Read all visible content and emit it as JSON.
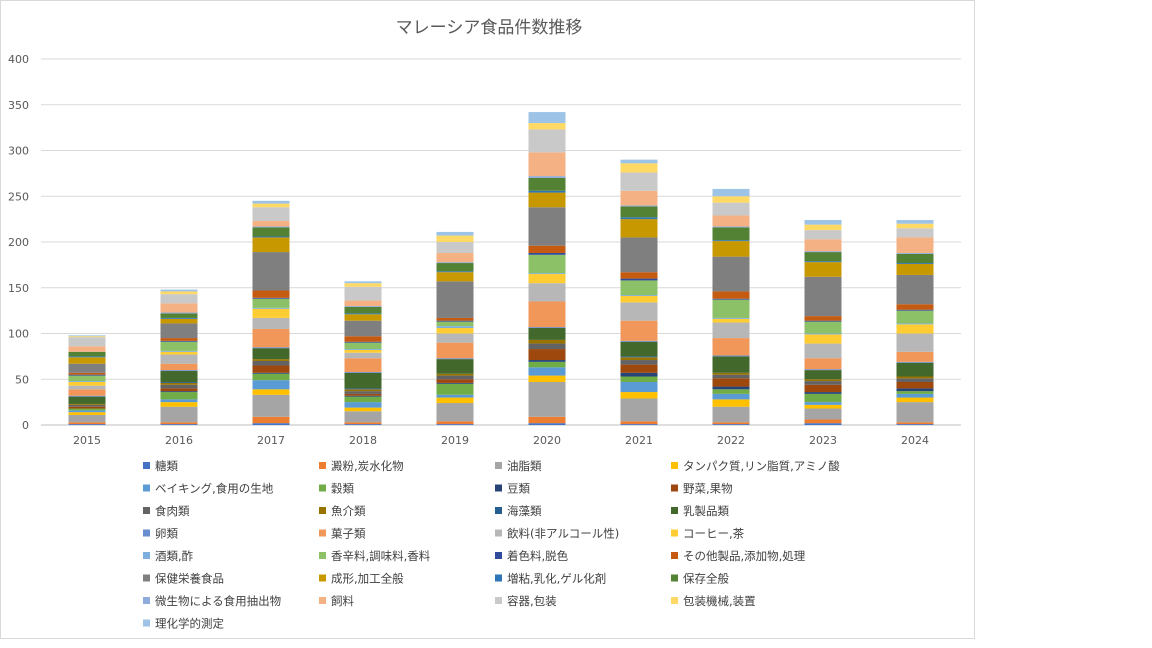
{
  "chart_data": {
    "type": "bar",
    "stacked": true,
    "title": "マレーシア食品件数推移",
    "xlabel": "",
    "ylabel": "",
    "ylim": [
      0,
      400
    ],
    "yticks": [
      0,
      50,
      100,
      150,
      200,
      250,
      300,
      350,
      400
    ],
    "grid": true,
    "legend_position": "bottom",
    "categories": [
      "2015",
      "2016",
      "2017",
      "2018",
      "2019",
      "2020",
      "2021",
      "2022",
      "2023",
      "2024"
    ],
    "series": [
      {
        "name": "糖類",
        "color": "#4472C4",
        "values": [
          1,
          1,
          2,
          1,
          1,
          2,
          1,
          1,
          2,
          1
        ]
      },
      {
        "name": "澱粉,炭水化物",
        "color": "#ED7D31",
        "values": [
          2,
          2,
          7,
          2,
          3,
          7,
          3,
          2,
          4,
          2
        ]
      },
      {
        "name": "油脂類",
        "color": "#A5A5A5",
        "values": [
          8,
          17,
          24,
          12,
          20,
          38,
          25,
          17,
          12,
          22
        ]
      },
      {
        "name": "タンパク質,リン脂質,アミノ酸",
        "color": "#FFC000",
        "values": [
          3,
          5,
          6,
          4,
          6,
          7,
          7,
          8,
          4,
          5
        ]
      },
      {
        "name": "ベイキング,食用の生地",
        "color": "#5B9BD5",
        "values": [
          2,
          3,
          10,
          6,
          3,
          9,
          11,
          6,
          3,
          4
        ]
      },
      {
        "name": "穀類",
        "color": "#70AD47",
        "values": [
          2,
          8,
          7,
          6,
          12,
          6,
          6,
          5,
          9,
          3
        ]
      },
      {
        "name": "豆類",
        "color": "#264478",
        "values": [
          0,
          1,
          1,
          1,
          1,
          2,
          4,
          3,
          2,
          3
        ]
      },
      {
        "name": "野菜,果物",
        "color": "#9E480E",
        "values": [
          2,
          3,
          8,
          2,
          4,
          12,
          9,
          9,
          8,
          7
        ]
      },
      {
        "name": "食肉類",
        "color": "#636363",
        "values": [
          2,
          4,
          5,
          3,
          4,
          6,
          5,
          4,
          4,
          4
        ]
      },
      {
        "name": "魚介類",
        "color": "#997300",
        "values": [
          1,
          2,
          2,
          2,
          2,
          4,
          3,
          2,
          2,
          2
        ]
      },
      {
        "name": "海藻類",
        "color": "#255E91",
        "values": [
          0,
          1,
          0,
          1,
          0,
          0,
          1,
          0,
          0,
          0
        ]
      },
      {
        "name": "乳製品類",
        "color": "#43682B",
        "values": [
          8,
          12,
          12,
          17,
          16,
          13,
          16,
          18,
          10,
          15
        ]
      },
      {
        "name": "卵類",
        "color": "#698ED0",
        "values": [
          1,
          1,
          1,
          1,
          1,
          1,
          1,
          1,
          1,
          1
        ]
      },
      {
        "name": "菓子類",
        "color": "#F1975A",
        "values": [
          7,
          7,
          20,
          15,
          17,
          28,
          22,
          19,
          12,
          11
        ]
      },
      {
        "name": "飲料(非アルコール性)",
        "color": "#B7B7B7",
        "values": [
          4,
          10,
          12,
          6,
          10,
          20,
          20,
          17,
          16,
          20
        ]
      },
      {
        "name": "コーヒー,茶",
        "color": "#FFCD33",
        "values": [
          4,
          3,
          10,
          3,
          6,
          10,
          7,
          4,
          10,
          10
        ]
      },
      {
        "name": "酒類,酢",
        "color": "#7CAFDD",
        "values": [
          1,
          1,
          1,
          1,
          2,
          1,
          1,
          1,
          1,
          1
        ]
      },
      {
        "name": "香辛料,調味料,香料",
        "color": "#8CC168",
        "values": [
          6,
          10,
          10,
          7,
          5,
          20,
          16,
          20,
          13,
          14
        ]
      },
      {
        "name": "着色料,脱色",
        "color": "#2F4B9A",
        "values": [
          1,
          1,
          1,
          1,
          1,
          2,
          2,
          1,
          1,
          1
        ]
      },
      {
        "name": "その他製品,添加物,処理",
        "color": "#C55A11",
        "values": [
          2,
          3,
          8,
          6,
          3,
          8,
          7,
          8,
          5,
          6
        ]
      },
      {
        "name": "保健栄養食品",
        "color": "#7F7F7F",
        "values": [
          10,
          16,
          42,
          17,
          40,
          42,
          38,
          38,
          43,
          32
        ]
      },
      {
        "name": "成形,加工全般",
        "color": "#C89800",
        "values": [
          7,
          5,
          16,
          7,
          10,
          16,
          20,
          17,
          16,
          12
        ]
      },
      {
        "name": "増粘,乳化,ゲル化剤",
        "color": "#2E75B6",
        "values": [
          1,
          1,
          1,
          1,
          1,
          2,
          2,
          1,
          1,
          1
        ]
      },
      {
        "name": "保存全般",
        "color": "#548235",
        "values": [
          5,
          5,
          10,
          7,
          9,
          14,
          12,
          14,
          10,
          10
        ]
      },
      {
        "name": "微生物による食用抽出物",
        "color": "#8FAADC",
        "values": [
          0,
          1,
          1,
          1,
          1,
          2,
          1,
          1,
          1,
          1
        ]
      },
      {
        "name": "飼料",
        "color": "#F4B183",
        "values": [
          6,
          10,
          6,
          6,
          10,
          26,
          16,
          12,
          13,
          17
        ]
      },
      {
        "name": "容器,包装",
        "color": "#C9C9C9",
        "values": [
          10,
          10,
          15,
          15,
          12,
          25,
          20,
          14,
          10,
          10
        ]
      },
      {
        "name": "包装機械,装置",
        "color": "#FFD966",
        "values": [
          1,
          3,
          4,
          4,
          7,
          7,
          10,
          7,
          6,
          5
        ]
      },
      {
        "name": "理化学的測定",
        "color": "#9DC3E6",
        "values": [
          1,
          2,
          3,
          2,
          4,
          12,
          4,
          8,
          5,
          4
        ]
      }
    ]
  }
}
